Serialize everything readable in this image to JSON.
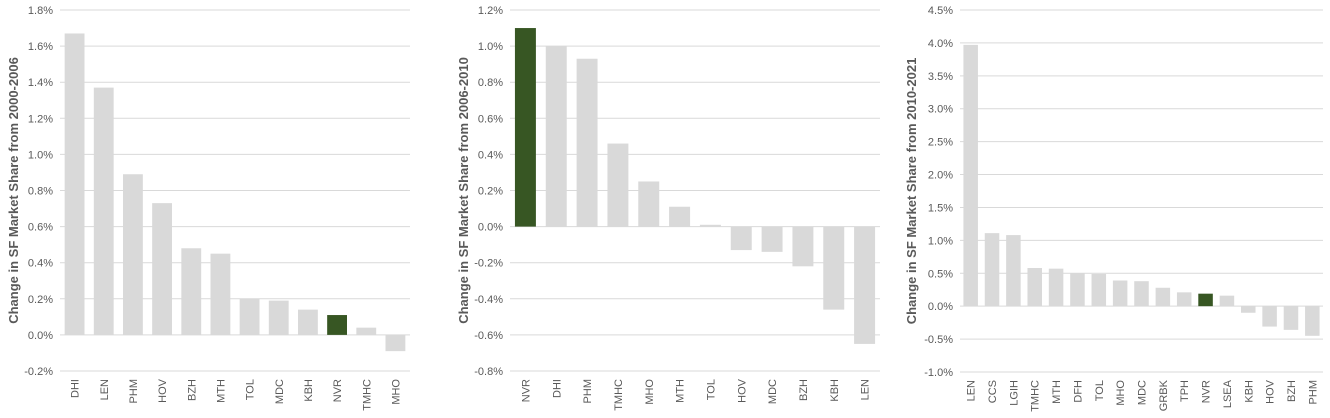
{
  "colors": {
    "bar": "#d9d9d9",
    "highlight": "#375623",
    "grid": "#d9d9d9",
    "text": "#595959"
  },
  "chart_data": [
    {
      "type": "bar",
      "ylabel": "Change in SF Market Share from 2000-2006",
      "ylim": [
        -0.2,
        1.8
      ],
      "ystep": 0.2,
      "decimals": 1,
      "grid": true,
      "highlight": "NVR",
      "categories": [
        "DHI",
        "LEN",
        "PHM",
        "HOV",
        "BZH",
        "MTH",
        "TOL",
        "MDC",
        "KBH",
        "NVR",
        "TMHC",
        "MHO"
      ],
      "values": [
        1.67,
        1.37,
        0.89,
        0.73,
        0.48,
        0.45,
        0.2,
        0.19,
        0.14,
        0.11,
        0.04,
        -0.09
      ]
    },
    {
      "type": "bar",
      "ylabel": "Change in SF Market Share from 2006-2010",
      "ylim": [
        -0.8,
        1.2
      ],
      "ystep": 0.2,
      "decimals": 1,
      "grid": true,
      "highlight": "NVR",
      "categories": [
        "NVR",
        "DHI",
        "PHM",
        "TMHC",
        "MHO",
        "MTH",
        "TOL",
        "HOV",
        "MDC",
        "BZH",
        "KBH",
        "LEN"
      ],
      "values": [
        1.1,
        1.0,
        0.93,
        0.46,
        0.25,
        0.11,
        0.01,
        -0.13,
        -0.14,
        -0.22,
        -0.46,
        -0.65
      ]
    },
    {
      "type": "bar",
      "ylabel": "Change in SF Market Share from 2010-2021",
      "ylim": [
        -1.0,
        4.5
      ],
      "ystep": 0.5,
      "decimals": 1,
      "grid": true,
      "highlight": "NVR",
      "categories": [
        "LEN",
        "CCS",
        "LGIH",
        "TMHC",
        "MTH",
        "DFH",
        "TOL",
        "MHO",
        "MDC",
        "GRBK",
        "TPH",
        "NVR",
        "LSEA",
        "KBH",
        "HOV",
        "BZH",
        "PHM"
      ],
      "values": [
        3.97,
        1.11,
        1.08,
        0.58,
        0.57,
        0.5,
        0.49,
        0.39,
        0.38,
        0.28,
        0.21,
        0.19,
        0.16,
        -0.1,
        -0.31,
        -0.36,
        -0.45
      ]
    }
  ]
}
